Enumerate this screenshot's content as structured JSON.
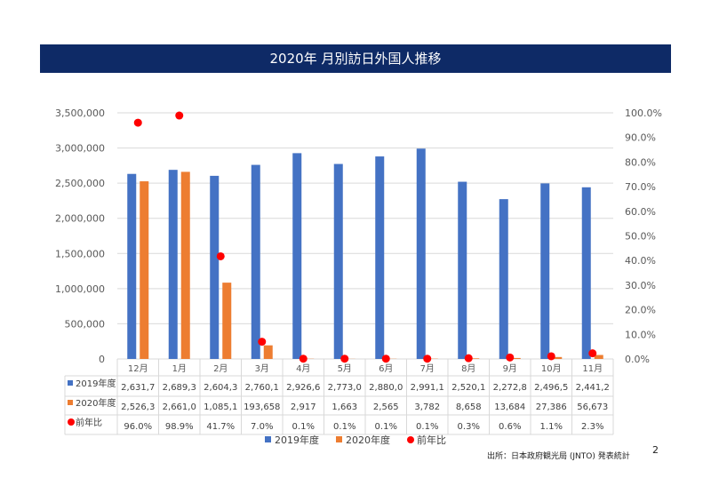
{
  "page_number": "2",
  "source": "出所：日本政府観光局 (JNTO) 発表統計",
  "chart_data": {
    "type": "bar",
    "title": "2020年 月別訪日外国人推移",
    "categories": [
      "12月",
      "1月",
      "2月",
      "3月",
      "4月",
      "5月",
      "6月",
      "7月",
      "8月",
      "9月",
      "10月",
      "11月"
    ],
    "left_axis": {
      "ylim": [
        0,
        3500000
      ],
      "ticks": [
        "0",
        "500,000",
        "1,000,000",
        "1,500,000",
        "2,000,000",
        "2,500,000",
        "3,000,000",
        "3,500,000"
      ]
    },
    "right_axis": {
      "ylim": [
        0,
        100
      ],
      "ticks": [
        "0.0%",
        "10.0%",
        "20.0%",
        "30.0%",
        "40.0%",
        "50.0%",
        "60.0%",
        "70.0%",
        "80.0%",
        "90.0%",
        "100.0%"
      ]
    },
    "series": [
      {
        "name": "2019年度",
        "kind": "bar",
        "axis": "left",
        "color": "#4472c4",
        "values": [
          2631700,
          2689300,
          2604300,
          2760100,
          2926600,
          2773000,
          2880000,
          2991100,
          2520100,
          2272800,
          2496500,
          2441200
        ],
        "table_labels": [
          "2,631,7",
          "2,689,3",
          "2,604,3",
          "2,760,1",
          "2,926,6",
          "2,773,0",
          "2,880,0",
          "2,991,1",
          "2,520,1",
          "2,272,8",
          "2,496,5",
          "2,441,2"
        ]
      },
      {
        "name": "2020年度",
        "kind": "bar",
        "axis": "left",
        "color": "#ed7d31",
        "values": [
          2526300,
          2661000,
          1085100,
          193658,
          2917,
          1663,
          2565,
          3782,
          8658,
          13684,
          27386,
          56673
        ],
        "table_labels": [
          "2,526,3",
          "2,661,0",
          "1,085,1",
          "193,658",
          "2,917",
          "1,663",
          "2,565",
          "3,782",
          "8,658",
          "13,684",
          "27,386",
          "56,673"
        ]
      },
      {
        "name": "前年比",
        "kind": "scatter",
        "axis": "right",
        "color": "#ff0000",
        "values": [
          96.0,
          98.9,
          41.7,
          7.0,
          0.1,
          0.1,
          0.1,
          0.1,
          0.3,
          0.6,
          1.1,
          2.3
        ],
        "table_labels": [
          "96.0%",
          "98.9%",
          "41.7%",
          "7.0%",
          "0.1%",
          "0.1%",
          "0.1%",
          "0.1%",
          "0.3%",
          "0.6%",
          "1.1%",
          "2.3%"
        ]
      }
    ],
    "legend": "bottom",
    "grid": true
  }
}
